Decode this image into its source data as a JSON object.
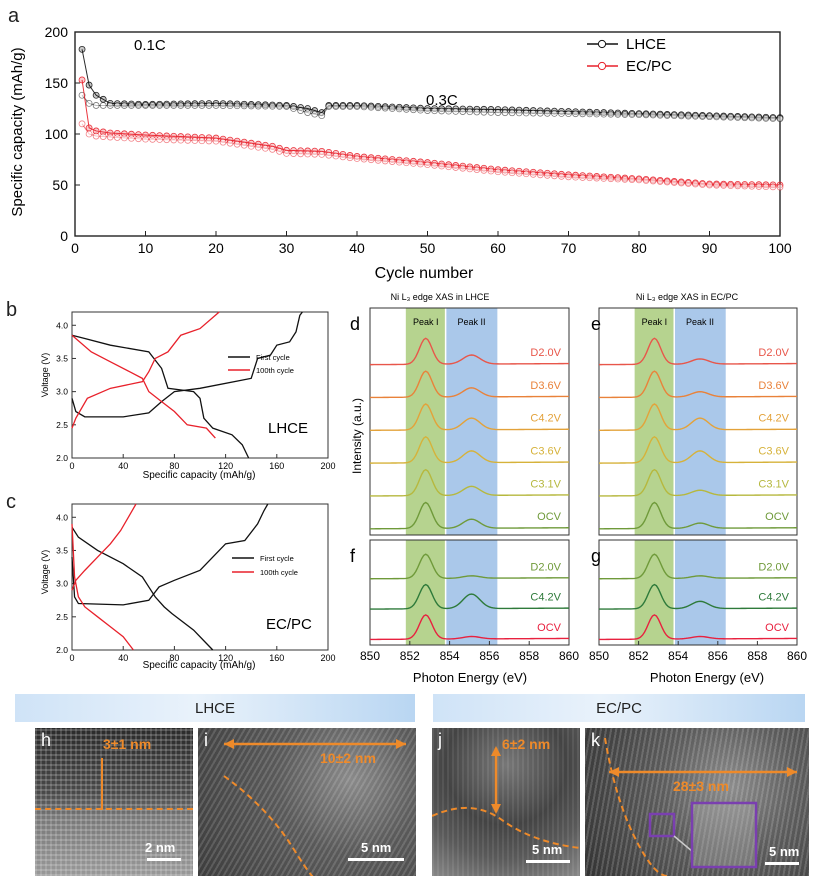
{
  "panel_a": {
    "letter": "a",
    "ylabel": "Specific capacity (mAh/g)",
    "xlabel": "Cycle number",
    "annotation_01C": "0.1C",
    "annotation_03C": "0.3C",
    "xticks": [
      "0",
      "10",
      "20",
      "30",
      "40",
      "50",
      "60",
      "70",
      "80",
      "90",
      "100"
    ],
    "yticks": [
      "0",
      "50",
      "100",
      "150",
      "200"
    ],
    "legend": [
      "LHCE",
      "EC/PC"
    ],
    "colors": {
      "lhce": "#111111",
      "ecpc": "#e8212b"
    }
  },
  "panel_b": {
    "letter": "b",
    "tag": "LHCE",
    "ylabel": "Voltage (V)",
    "xlabel": "Specific capacity (mAh/g)",
    "legend": [
      "First cycle",
      "100th cycle"
    ],
    "xticks": [
      "0",
      "40",
      "80",
      "120",
      "160",
      "200"
    ],
    "yticks": [
      "2.0",
      "2.5",
      "3.0",
      "3.5",
      "4.0"
    ]
  },
  "panel_c": {
    "letter": "c",
    "tag": "EC/PC",
    "ylabel": "Voltage (V)",
    "xlabel": "Specific capacity (mAh/g)",
    "legend": [
      "First cycle",
      "100th cycle"
    ],
    "xticks": [
      "0",
      "40",
      "80",
      "120",
      "160",
      "200"
    ],
    "yticks": [
      "2.0",
      "2.5",
      "3.0",
      "3.5",
      "4.0"
    ]
  },
  "xas": {
    "title_left": "Ni L₃ edge XAS in LHCE",
    "title_right": "Ni L₃ edge XAS in EC/PC",
    "peak1": "Peak I",
    "peak2": "Peak II",
    "ylabel": "Intensity (a.u.)",
    "xlabel": "Photon Energy (eV)",
    "xticks": [
      "850",
      "852",
      "854",
      "856",
      "858",
      "860"
    ],
    "letters": [
      "d",
      "e",
      "f",
      "g"
    ],
    "top_labels": [
      "D2.0V",
      "D3.6V",
      "C4.2V",
      "C3.6V",
      "C3.1V",
      "OCV"
    ],
    "bottom_labels": [
      "D2.0V",
      "C4.2V",
      "OCV"
    ],
    "top_colors": [
      "#e8564a",
      "#e9823a",
      "#e3a23a",
      "#d6b23a",
      "#b6b83e",
      "#6f9a3a"
    ],
    "bottom_colors": [
      "#6f9a3a",
      "#2e7a3a",
      "#e8213f"
    ]
  },
  "banners": {
    "left": "LHCE",
    "right": "EC/PC"
  },
  "micrographs": [
    {
      "letter": "h",
      "measure": "3±1 nm",
      "scale": "2 nm"
    },
    {
      "letter": "i",
      "measure": "10±2 nm",
      "scale": "5 nm"
    },
    {
      "letter": "j",
      "measure": "6±2 nm",
      "scale": "5 nm"
    },
    {
      "letter": "k",
      "measure": "28±3 nm",
      "scale": "5 nm"
    }
  ],
  "chart_data": [
    {
      "type": "scatter",
      "title": "",
      "xlabel": "Cycle number",
      "ylabel": "Specific capacity (mAh/g)",
      "xlim": [
        0,
        100
      ],
      "ylim": [
        0,
        200
      ],
      "legend_position": "top-right",
      "series": [
        {
          "name": "LHCE",
          "x": [
            1,
            2,
            3,
            5,
            10,
            20,
            30,
            33,
            35,
            36,
            40,
            50,
            60,
            70,
            80,
            90,
            100
          ],
          "charge": [
            183,
            148,
            138,
            130,
            129,
            130,
            128,
            125,
            121,
            128,
            128,
            125,
            124,
            122,
            120,
            118,
            116
          ],
          "discharge": [
            138,
            130,
            128,
            128,
            128,
            128,
            127,
            121,
            118,
            127,
            127,
            123,
            121,
            120,
            119,
            117,
            115
          ]
        },
        {
          "name": "EC/PC",
          "x": [
            1,
            2,
            3,
            5,
            10,
            20,
            28,
            30,
            35,
            40,
            50,
            60,
            70,
            80,
            90,
            100
          ],
          "charge": [
            153,
            106,
            103,
            101,
            99,
            96,
            88,
            84,
            83,
            78,
            72,
            65,
            60,
            56,
            51,
            50
          ],
          "discharge": [
            110,
            100,
            98,
            97,
            95,
            93,
            85,
            81,
            80,
            76,
            70,
            63,
            58,
            55,
            50,
            48
          ]
        }
      ]
    },
    {
      "type": "line",
      "panel": "b",
      "xlabel": "Specific capacity (mAh/g)",
      "ylabel": "Voltage (V)",
      "xlim": [
        0,
        200
      ],
      "ylim": [
        2.0,
        4.2
      ],
      "series": [
        {
          "name": "First cycle",
          "charge": [
            [
              0,
              2.9
            ],
            [
              3,
              2.7
            ],
            [
              10,
              2.62
            ],
            [
              40,
              2.62
            ],
            [
              60,
              2.68
            ],
            [
              70,
              2.85
            ],
            [
              80,
              3.0
            ],
            [
              100,
              3.05
            ],
            [
              140,
              3.2
            ],
            [
              145,
              3.5
            ],
            [
              155,
              3.55
            ],
            [
              160,
              3.7
            ],
            [
              170,
              3.75
            ],
            [
              175,
              3.9
            ],
            [
              178,
              4.15
            ],
            [
              180,
              4.2
            ]
          ],
          "discharge": [
            [
              0,
              3.85
            ],
            [
              10,
              3.8
            ],
            [
              30,
              3.7
            ],
            [
              60,
              3.6
            ],
            [
              70,
              3.35
            ],
            [
              75,
              3.05
            ],
            [
              95,
              3.0
            ],
            [
              100,
              2.9
            ],
            [
              103,
              2.6
            ],
            [
              110,
              2.45
            ],
            [
              125,
              2.35
            ],
            [
              133,
              2.2
            ],
            [
              138,
              2.0
            ]
          ]
        },
        {
          "name": "100th cycle",
          "charge": [
            [
              0,
              2.45
            ],
            [
              3,
              2.6
            ],
            [
              12,
              2.9
            ],
            [
              30,
              3.05
            ],
            [
              55,
              3.15
            ],
            [
              60,
              3.3
            ],
            [
              65,
              3.5
            ],
            [
              75,
              3.6
            ],
            [
              85,
              3.85
            ],
            [
              100,
              3.95
            ],
            [
              115,
              4.2
            ]
          ],
          "discharge": [
            [
              0,
              3.85
            ],
            [
              15,
              3.6
            ],
            [
              30,
              3.45
            ],
            [
              45,
              3.3
            ],
            [
              55,
              3.2
            ],
            [
              60,
              3.0
            ],
            [
              70,
              2.85
            ],
            [
              80,
              2.7
            ],
            [
              90,
              2.5
            ],
            [
              105,
              2.45
            ],
            [
              112,
              2.3
            ]
          ]
        }
      ]
    },
    {
      "type": "line",
      "panel": "c",
      "xlabel": "Specific capacity (mAh/g)",
      "ylabel": "Voltage (V)",
      "xlim": [
        0,
        200
      ],
      "ylim": [
        2.0,
        4.2
      ],
      "series": [
        {
          "name": "First cycle",
          "charge": [
            [
              0,
              3.4
            ],
            [
              2,
              2.8
            ],
            [
              5,
              2.7
            ],
            [
              40,
              2.68
            ],
            [
              60,
              2.75
            ],
            [
              68,
              2.95
            ],
            [
              80,
              3.05
            ],
            [
              100,
              3.2
            ],
            [
              120,
              3.6
            ],
            [
              135,
              3.65
            ],
            [
              145,
              3.9
            ],
            [
              150,
              4.1
            ],
            [
              153,
              4.2
            ]
          ],
          "discharge": [
            [
              0,
              3.85
            ],
            [
              5,
              3.7
            ],
            [
              20,
              3.5
            ],
            [
              40,
              3.3
            ],
            [
              55,
              3.1
            ],
            [
              60,
              2.95
            ],
            [
              65,
              2.8
            ],
            [
              72,
              2.65
            ],
            [
              78,
              2.55
            ],
            [
              95,
              2.3
            ],
            [
              105,
              2.1
            ],
            [
              110,
              2.0
            ]
          ]
        },
        {
          "name": "100th cycle",
          "charge": [
            [
              0,
              2.9
            ],
            [
              3,
              3.05
            ],
            [
              10,
              3.2
            ],
            [
              20,
              3.4
            ],
            [
              30,
              3.6
            ],
            [
              38,
              3.8
            ],
            [
              44,
              4.0
            ],
            [
              50,
              4.2
            ]
          ],
          "discharge": [
            [
              0,
              3.9
            ],
            [
              2,
              3.1
            ],
            [
              5,
              2.8
            ],
            [
              10,
              2.65
            ],
            [
              20,
              2.5
            ],
            [
              30,
              2.35
            ],
            [
              40,
              2.2
            ],
            [
              48,
              2.0
            ]
          ]
        }
      ]
    },
    {
      "type": "line",
      "panel": "d",
      "xlabel": "Photon Energy (eV)",
      "ylabel": "Intensity (a.u.)",
      "xlim": [
        850,
        860
      ],
      "series": [
        {
          "name": "D2.0V"
        },
        {
          "name": "D3.6V"
        },
        {
          "name": "C4.2V"
        },
        {
          "name": "C3.6V"
        },
        {
          "name": "C3.1V"
        },
        {
          "name": "OCV"
        }
      ]
    },
    {
      "type": "line",
      "panel": "e",
      "xlabel": "Photon Energy (eV)",
      "ylabel": "Intensity (a.u.)",
      "xlim": [
        850,
        860
      ],
      "series": [
        {
          "name": "D2.0V"
        },
        {
          "name": "D3.6V"
        },
        {
          "name": "C4.2V"
        },
        {
          "name": "C3.6V"
        },
        {
          "name": "C3.1V"
        },
        {
          "name": "OCV"
        }
      ]
    },
    {
      "type": "line",
      "panel": "f",
      "xlabel": "Photon Energy (eV)",
      "ylabel": "Intensity (a.u.)",
      "xlim": [
        850,
        860
      ],
      "series": [
        {
          "name": "D2.0V"
        },
        {
          "name": "C4.2V"
        },
        {
          "name": "OCV"
        }
      ]
    },
    {
      "type": "line",
      "panel": "g",
      "xlabel": "Photon Energy (eV)",
      "ylabel": "Intensity (a.u.)",
      "xlim": [
        850,
        860
      ],
      "series": [
        {
          "name": "D2.0V"
        },
        {
          "name": "C4.2V"
        },
        {
          "name": "OCV"
        }
      ]
    }
  ]
}
